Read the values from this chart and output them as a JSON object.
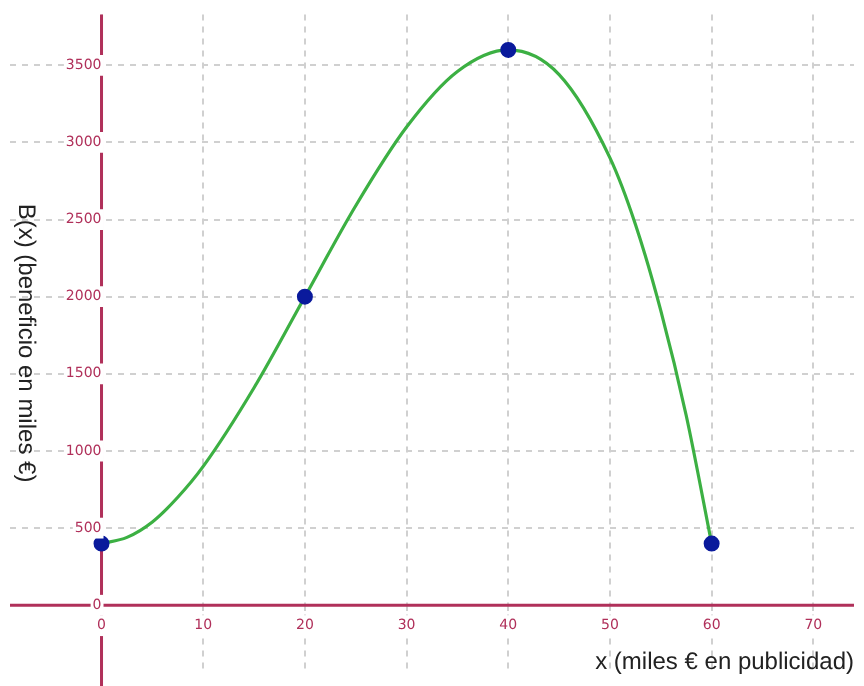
{
  "chart_data": {
    "type": "line",
    "xlabel": "x (miles € en publicidad)",
    "ylabel": "B(x) (beneficio en miles €)",
    "xlim": [
      -9,
      74
    ],
    "ylim": [
      -430,
      3830
    ],
    "xticks": [
      0,
      10,
      20,
      30,
      40,
      50,
      60,
      70
    ],
    "yticks": [
      0,
      500,
      1000,
      1500,
      2000,
      2500,
      3000,
      3500
    ],
    "grid": true,
    "legend": false,
    "series": [
      {
        "color": "#3cb043",
        "marker": "none",
        "x": [
          0,
          2.5,
          5,
          7.5,
          10,
          15,
          20,
          25,
          30,
          35,
          40,
          45,
          50,
          52.5,
          55,
          57.5,
          60
        ],
        "values": [
          400,
          440,
          540,
          700,
          900,
          1410,
          2000,
          2590,
          3100,
          3460,
          3600,
          3440,
          2900,
          2470,
          1910,
          1230,
          400
        ]
      },
      {
        "type": "scatter",
        "color": "#0a1a9c",
        "marker": "circle",
        "x": [
          0,
          20,
          40,
          60
        ],
        "values": [
          400,
          2000,
          3600,
          400
        ]
      }
    ]
  }
}
